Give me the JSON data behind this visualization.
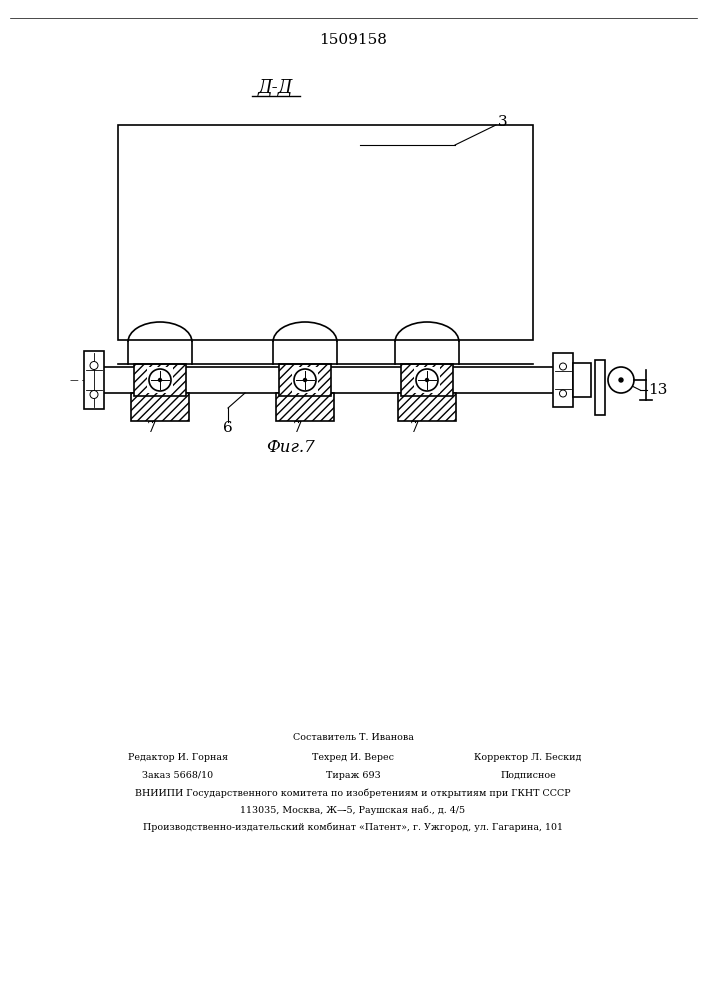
{
  "patent_number": "1509158",
  "section_label": "Д-Д",
  "fig_label": "Фиг.7",
  "label_3": "3",
  "label_6": "6",
  "label_7a": "7",
  "label_7b": "7",
  "label_7c": "7",
  "label_13": "13",
  "bg_color": "#ffffff",
  "line_color": "#000000",
  "footer_line1": "Составитель Т. Иванова",
  "footer_line2_left": "Редактор И. Горная",
  "footer_line2_mid": "Техред И. Верес",
  "footer_line2_right": "Корректор Л. Бескид",
  "footer_line3_left": "Заказ 5668/10",
  "footer_line3_mid": "Тираж 693",
  "footer_line3_right": "Подписное",
  "footer_line4": "ВНИИПИ Государственного комитета по изобретениям и открытиям при ГКНТ СССР",
  "footer_line5": "113035, Москва, Ж—̵5, Раушская наб., д. 4/5",
  "footer_line6": "Производственно-издательский комбинат «Патент», г. Ужгород, ул. Гагарина, 101"
}
